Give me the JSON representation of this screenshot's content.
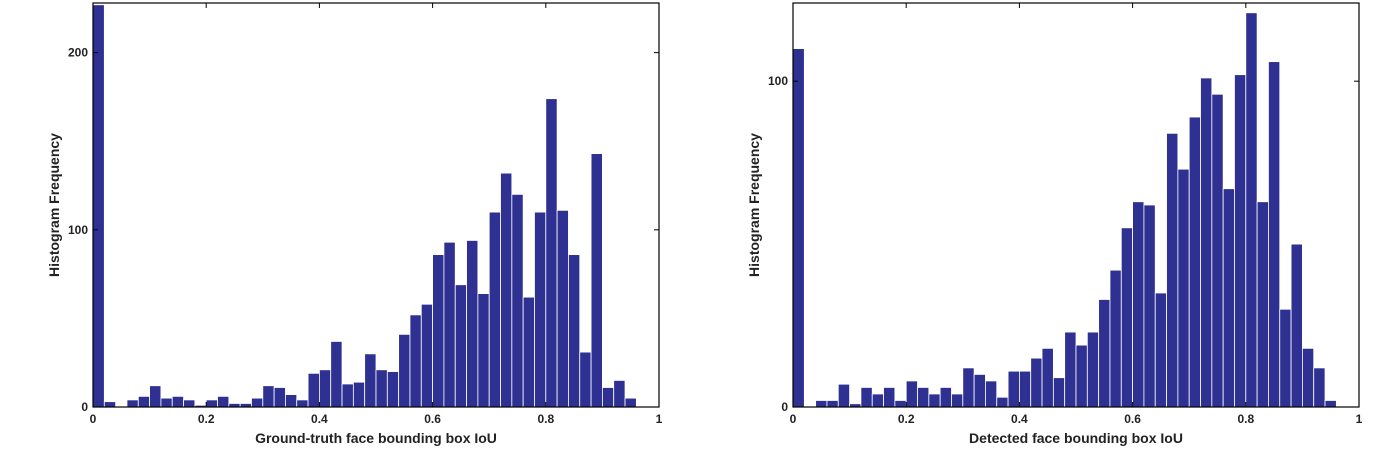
{
  "chart_data": [
    {
      "type": "bar",
      "title": "",
      "xlabel": "Ground-truth face bounding box IoU",
      "ylabel": "Histogram Frequency",
      "xlim": [
        0,
        1
      ],
      "ylim": [
        0,
        228
      ],
      "grid": false,
      "bin_width": 0.02,
      "x": [
        0.0,
        0.02,
        0.04,
        0.06,
        0.08,
        0.1,
        0.12,
        0.14,
        0.16,
        0.18,
        0.2,
        0.22,
        0.24,
        0.26,
        0.28,
        0.3,
        0.32,
        0.34,
        0.36,
        0.38,
        0.4,
        0.42,
        0.44,
        0.46,
        0.48,
        0.5,
        0.52,
        0.54,
        0.56,
        0.58,
        0.6,
        0.62,
        0.64,
        0.66,
        0.68,
        0.7,
        0.72,
        0.74,
        0.76,
        0.78,
        0.8,
        0.82,
        0.84,
        0.86,
        0.88,
        0.9,
        0.92,
        0.94,
        0.96
      ],
      "values": [
        227,
        3,
        0,
        4,
        6,
        12,
        5,
        6,
        4,
        1,
        4,
        6,
        2,
        2,
        5,
        12,
        11,
        7,
        4,
        19,
        21,
        37,
        13,
        14,
        30,
        21,
        20,
        41,
        52,
        58,
        86,
        93,
        69,
        94,
        64,
        110,
        132,
        120,
        62,
        110,
        174,
        111,
        86,
        31,
        143,
        11,
        15,
        5,
        0
      ],
      "xticks": [
        "0",
        "0.2",
        "0.4",
        "0.6",
        "0.8",
        "1"
      ],
      "xtick_values": [
        0,
        0.2,
        0.4,
        0.6,
        0.8,
        1
      ],
      "yticks": [
        "0",
        "100",
        "200"
      ],
      "ytick_values": [
        0,
        100,
        200
      ],
      "bar_color": "#2e3192",
      "edge_color": "#ffffff"
    },
    {
      "type": "bar",
      "title": "",
      "xlabel": "Detected face bounding box IoU",
      "ylabel": "Histogram Frequency",
      "xlim": [
        0,
        1
      ],
      "ylim": [
        0,
        124
      ],
      "grid": false,
      "bin_width": 0.02,
      "x": [
        0.0,
        0.02,
        0.04,
        0.06,
        0.08,
        0.1,
        0.12,
        0.14,
        0.16,
        0.18,
        0.2,
        0.22,
        0.24,
        0.26,
        0.28,
        0.3,
        0.32,
        0.34,
        0.36,
        0.38,
        0.4,
        0.42,
        0.44,
        0.46,
        0.48,
        0.5,
        0.52,
        0.54,
        0.56,
        0.58,
        0.6,
        0.62,
        0.64,
        0.66,
        0.68,
        0.7,
        0.72,
        0.74,
        0.76,
        0.78,
        0.8,
        0.82,
        0.84,
        0.86,
        0.88,
        0.9,
        0.92,
        0.94,
        0.96
      ],
      "values": [
        110,
        0,
        2,
        2,
        7,
        1,
        6,
        4,
        6,
        2,
        8,
        6,
        4,
        6,
        4,
        12,
        10,
        8,
        3,
        11,
        11,
        15,
        18,
        9,
        23,
        19,
        23,
        33,
        42,
        55,
        63,
        62,
        35,
        84,
        73,
        89,
        101,
        96,
        67,
        102,
        121,
        63,
        106,
        30,
        50,
        18,
        12,
        2,
        0
      ],
      "xticks": [
        "0",
        "0.2",
        "0.4",
        "0.6",
        "0.8",
        "1"
      ],
      "xtick_values": [
        0,
        0.2,
        0.4,
        0.6,
        0.8,
        1
      ],
      "yticks": [
        "0",
        "100"
      ],
      "ytick_values": [
        0,
        100
      ],
      "bar_color": "#2e3192",
      "edge_color": "#ffffff"
    }
  ]
}
